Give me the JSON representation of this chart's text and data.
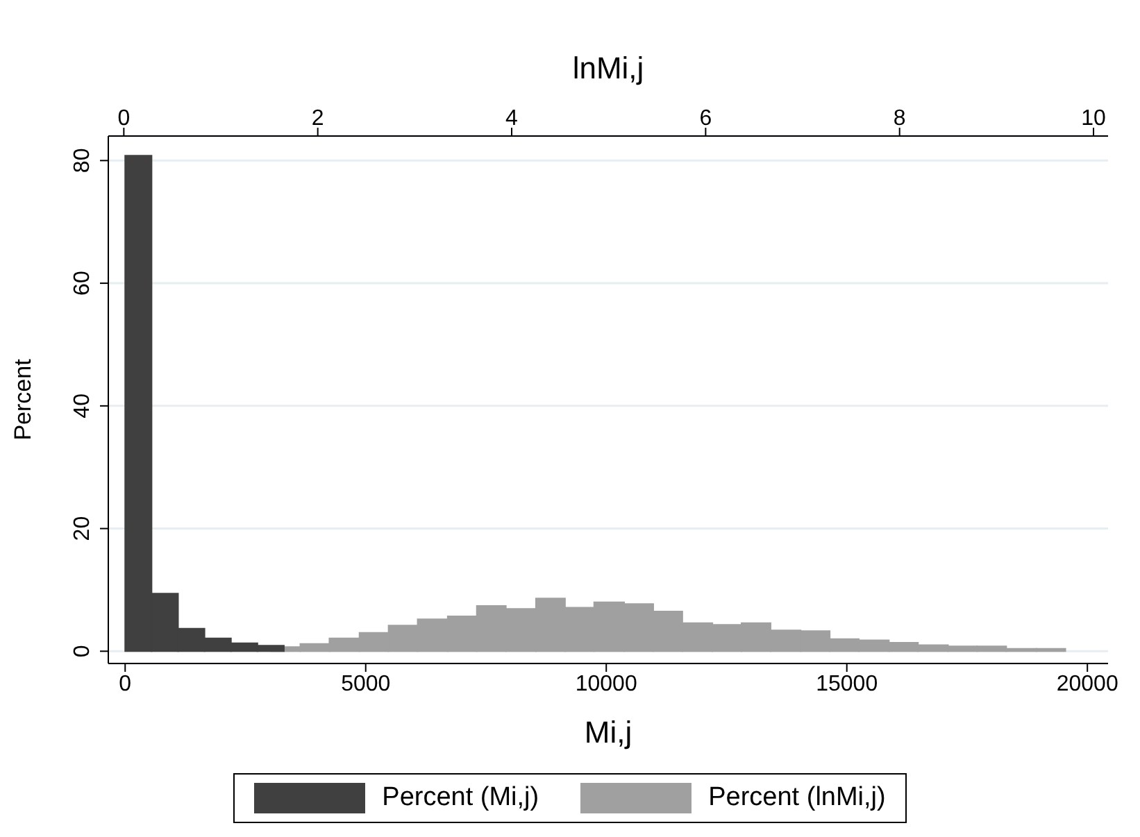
{
  "chart_data": {
    "type": "histogram",
    "xlabel": "Mi,j",
    "x2label": "lnMi,j",
    "ylabel": "Percent",
    "xlim": [
      -350,
      20430
    ],
    "xticks": [
      0,
      5000,
      10000,
      15000,
      20000
    ],
    "x2lim": [
      -0.16,
      10.15
    ],
    "x2ticks": [
      0,
      2,
      4,
      6,
      8,
      10
    ],
    "bins": [
      0,
      550,
      1100,
      1650,
      2200,
      2750,
      3300
    ],
    "ylim": [
      -2,
      84
    ],
    "yticks": [
      0,
      20,
      40,
      60,
      80
    ],
    "grid": "y",
    "legend": "bottom",
    "series": [
      {
        "name": "Percent (lnMi,j)",
        "color": "#a0a0a0",
        "axis": "x2",
        "bins": [
          1.52,
          1.82,
          2.12,
          2.43,
          2.73,
          3.03,
          3.34,
          3.64,
          3.94,
          4.25,
          4.55,
          4.85,
          5.16,
          5.46,
          5.76,
          6.07,
          6.37,
          6.67,
          6.98,
          7.28,
          7.58,
          7.89,
          8.19,
          8.5,
          8.8,
          9.1,
          9.41,
          9.71
        ],
        "values": [
          0.7,
          1.2,
          2.1,
          3.0,
          4.2,
          5.2,
          5.7,
          7.4,
          6.9,
          8.6,
          7.1,
          8.0,
          7.7,
          6.5,
          4.6,
          4.3,
          4.6,
          3.4,
          3.3,
          2.0,
          1.8,
          1.4,
          1.0,
          0.8,
          0.8,
          0.4,
          0.4
        ]
      },
      {
        "name": "Percent (Mi,j)",
        "color": "#404040",
        "values": [
          80.8,
          9.4,
          3.7,
          2.1,
          1.3,
          0.9
        ]
      }
    ]
  }
}
